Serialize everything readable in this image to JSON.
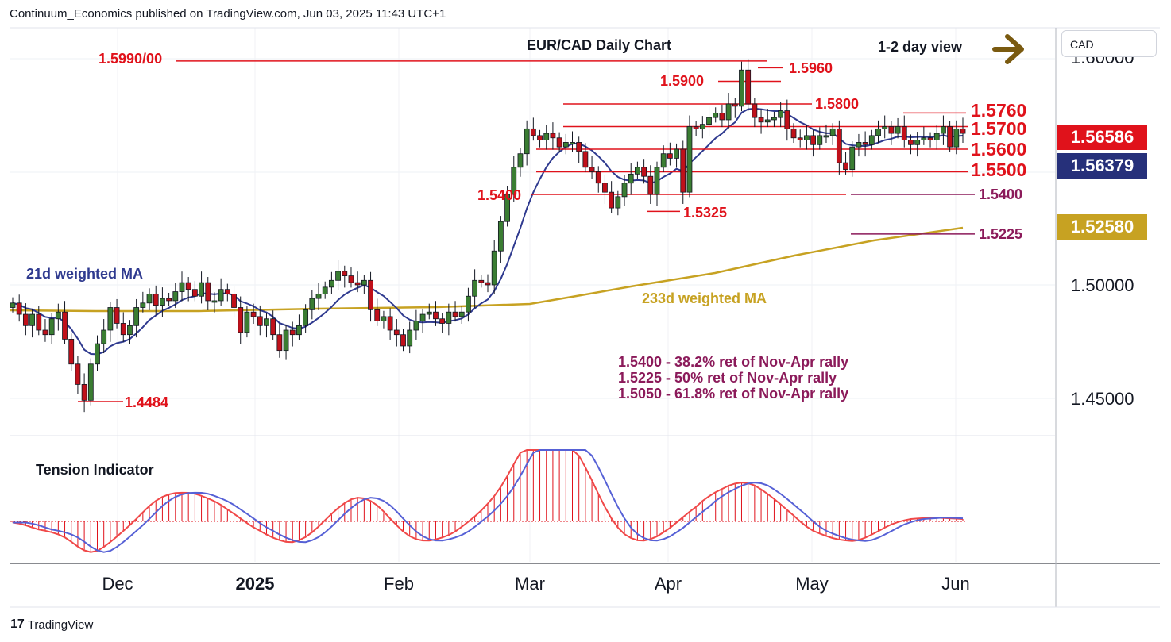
{
  "header": {
    "publisher": "Continuum_Economics published on TradingView.com, Jun 03, 2025 11:43 UTC+1"
  },
  "footer": {
    "brand": "TradingView",
    "logo_glyph": "17"
  },
  "currency_selector": {
    "label": "CAD"
  },
  "price_badges": [
    {
      "value": "1.56586",
      "color": "#e0121b"
    },
    {
      "value": "1.56379",
      "color": "#26307a"
    },
    {
      "value": "1.52580",
      "color": "#c7a222"
    }
  ],
  "colors": {
    "resistance": "#e0121b",
    "retracement": "#8b1a5a",
    "ma21": "#2f3a8f",
    "ma233": "#c7a222",
    "up_candle": "#3a7d32",
    "down_candle": "#c0101a",
    "arrow": "#7a5a10"
  },
  "chart_data": {
    "type": "candlestick",
    "title": "EUR/CAD Daily Chart",
    "view_label": "1-2 day view",
    "y_axis": {
      "ticks": [
        "1.60000",
        "1.50000",
        "1.45000"
      ]
    },
    "x_axis": {
      "ticks": [
        "Dec",
        "2025",
        "Feb",
        "Mar",
        "Apr",
        "May",
        "Jun"
      ]
    },
    "levels": [
      {
        "value": 1.599,
        "label": "1.5990/00",
        "type": "resistance"
      },
      {
        "value": 1.596,
        "label": "1.5960",
        "type": "resistance"
      },
      {
        "value": 1.59,
        "label": "1.5900",
        "type": "resistance"
      },
      {
        "value": 1.58,
        "label": "1.5800",
        "type": "resistance"
      },
      {
        "value": 1.576,
        "label": "1.5760",
        "type": "resistance"
      },
      {
        "value": 1.57,
        "label": "1.5700",
        "type": "resistance"
      },
      {
        "value": 1.56,
        "label": "1.5600",
        "type": "support"
      },
      {
        "value": 1.55,
        "label": "1.5500",
        "type": "support"
      },
      {
        "value": 1.54,
        "label": "1.5400",
        "type": "support"
      },
      {
        "value": 1.5325,
        "label": "1.5325",
        "type": "support"
      },
      {
        "value": 1.54,
        "label": "1.5400",
        "type": "retracement"
      },
      {
        "value": 1.5225,
        "label": "1.5225",
        "type": "retracement"
      },
      {
        "value": 1.4484,
        "label": "1.4484",
        "type": "support"
      }
    ],
    "moving_averages": [
      {
        "name": "21d weighted MA"
      },
      {
        "name": "233d weighted MA"
      }
    ],
    "notes": [
      "1.5400 - 38.2% ret of Nov-Apr rally",
      "1.5225 - 50% ret of Nov-Apr rally",
      "1.5050 - 61.8% ret of Nov-Apr rally"
    ],
    "sub_panel": {
      "title": "Tension Indicator"
    },
    "last_values": {
      "close": 1.56586,
      "ma21": 1.56379,
      "ma233": 1.5258
    },
    "price_path": [
      1.492,
      1.487,
      1.482,
      1.487,
      1.48,
      1.478,
      1.485,
      1.488,
      1.476,
      1.465,
      1.456,
      1.449,
      1.465,
      1.474,
      1.48,
      1.49,
      1.483,
      1.478,
      1.482,
      1.49,
      1.492,
      1.496,
      1.491,
      1.494,
      1.493,
      1.497,
      1.501,
      1.498,
      1.495,
      1.501,
      1.493,
      1.493,
      1.498,
      1.496,
      1.49,
      1.479,
      1.488,
      1.486,
      1.482,
      1.485,
      1.478,
      1.471,
      1.48,
      1.478,
      1.482,
      1.489,
      1.494,
      1.496,
      1.499,
      1.502,
      1.506,
      1.504,
      1.501,
      1.5,
      1.502,
      1.489,
      1.484,
      1.486,
      1.48,
      1.478,
      1.473,
      1.48,
      1.484,
      1.487,
      1.488,
      1.485,
      1.483,
      1.488,
      1.486,
      1.488,
      1.495,
      1.502,
      1.501,
      1.5,
      1.515,
      1.528,
      1.54,
      1.552,
      1.558,
      1.569,
      1.566,
      1.564,
      1.567,
      1.565,
      1.561,
      1.563,
      1.563,
      1.559,
      1.552,
      1.55,
      1.545,
      1.541,
      1.534,
      1.539,
      1.545,
      1.549,
      1.552,
      1.548,
      1.54,
      1.552,
      1.558,
      1.556,
      1.56,
      1.541,
      1.57,
      1.569,
      1.571,
      1.574,
      1.576,
      1.573,
      1.58,
      1.579,
      1.595,
      1.58,
      1.574,
      1.572,
      1.573,
      1.574,
      1.577,
      1.569,
      1.565,
      1.564,
      1.566,
      1.562,
      1.566,
      1.566,
      1.569,
      1.554,
      1.551,
      1.561,
      1.563,
      1.562,
      1.566,
      1.569,
      1.57,
      1.567,
      1.57,
      1.564,
      1.562,
      1.564,
      1.565,
      1.564,
      1.567,
      1.57,
      1.561,
      1.569,
      1.567
    ]
  }
}
